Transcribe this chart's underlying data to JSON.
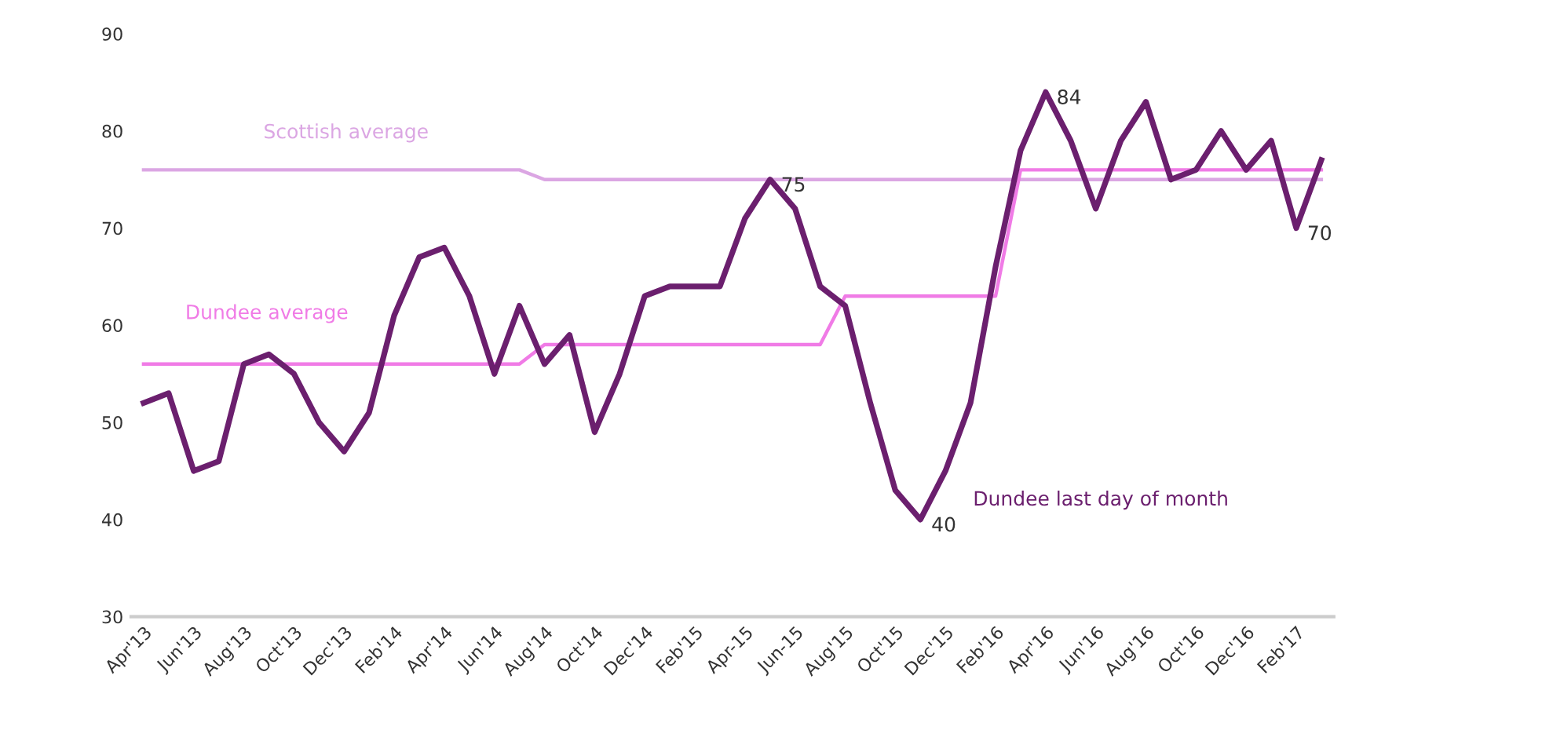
{
  "chart_data": {
    "type": "line",
    "categories": [
      "Apr'13",
      null,
      "Jun'13",
      null,
      "Aug'13",
      null,
      "Oct'13",
      null,
      "Dec'13",
      null,
      "Feb'14",
      null,
      "Apr'14",
      null,
      "Jun'14",
      null,
      "Aug'14",
      null,
      "Oct'14",
      null,
      "Dec'14",
      null,
      "Feb'15",
      null,
      "Apr-15",
      null,
      "Jun-15",
      null,
      "Aug'15",
      null,
      "Oct'15",
      null,
      "Dec'15",
      null,
      "Feb'16",
      null,
      "Apr'16",
      null,
      "Jun'16",
      null,
      "Aug'16",
      null,
      "Oct'16",
      null,
      "Dec'16",
      null,
      "Feb'17",
      null
    ],
    "series": [
      {
        "name": "Dundee last day of month",
        "color": "#6b1f6e",
        "values": [
          52,
          53,
          45,
          46,
          56,
          57,
          55,
          50,
          47,
          51,
          61,
          67,
          68,
          63,
          55,
          62,
          56,
          59,
          49,
          55,
          63,
          64,
          64,
          64,
          71,
          75,
          72,
          64,
          62,
          52,
          43,
          40,
          45,
          52,
          66,
          78,
          84,
          79,
          72,
          79,
          83,
          75,
          76,
          80,
          76,
          79,
          70,
          77
        ],
        "value_labels": [
          null,
          null,
          null,
          null,
          null,
          null,
          null,
          null,
          null,
          null,
          null,
          null,
          null,
          null,
          null,
          null,
          null,
          null,
          null,
          null,
          null,
          null,
          null,
          null,
          null,
          "75",
          null,
          null,
          null,
          null,
          null,
          "40",
          null,
          null,
          null,
          null,
          "84",
          null,
          null,
          null,
          null,
          null,
          null,
          null,
          null,
          null,
          "70",
          null
        ]
      },
      {
        "name": "Dundee average",
        "color": "#f07be6",
        "values": [
          56,
          56,
          56,
          56,
          56,
          56,
          56,
          56,
          56,
          56,
          56,
          56,
          56,
          56,
          56,
          56,
          58,
          58,
          58,
          58,
          58,
          58,
          58,
          58,
          58,
          58,
          58,
          58,
          63,
          63,
          63,
          63,
          63,
          63,
          63,
          76,
          76,
          76,
          76,
          76,
          76,
          76,
          76,
          76,
          76,
          76,
          76,
          76
        ]
      },
      {
        "name": "Scottish average",
        "color": "#dba6e3",
        "values": [
          76,
          76,
          76,
          76,
          76,
          76,
          76,
          76,
          76,
          76,
          76,
          76,
          76,
          76,
          76,
          76,
          75,
          75,
          75,
          75,
          75,
          75,
          75,
          75,
          75,
          75,
          75,
          75,
          75,
          75,
          75,
          75,
          75,
          75,
          75,
          75,
          75,
          75,
          75,
          75,
          75,
          75,
          75,
          75,
          75,
          75,
          75,
          75
        ]
      }
    ],
    "ylim": [
      30,
      90
    ],
    "yticks": [
      30,
      40,
      50,
      60,
      70,
      80,
      90
    ],
    "grid": false,
    "legend": false,
    "marker": "none",
    "line_style": "solid"
  }
}
